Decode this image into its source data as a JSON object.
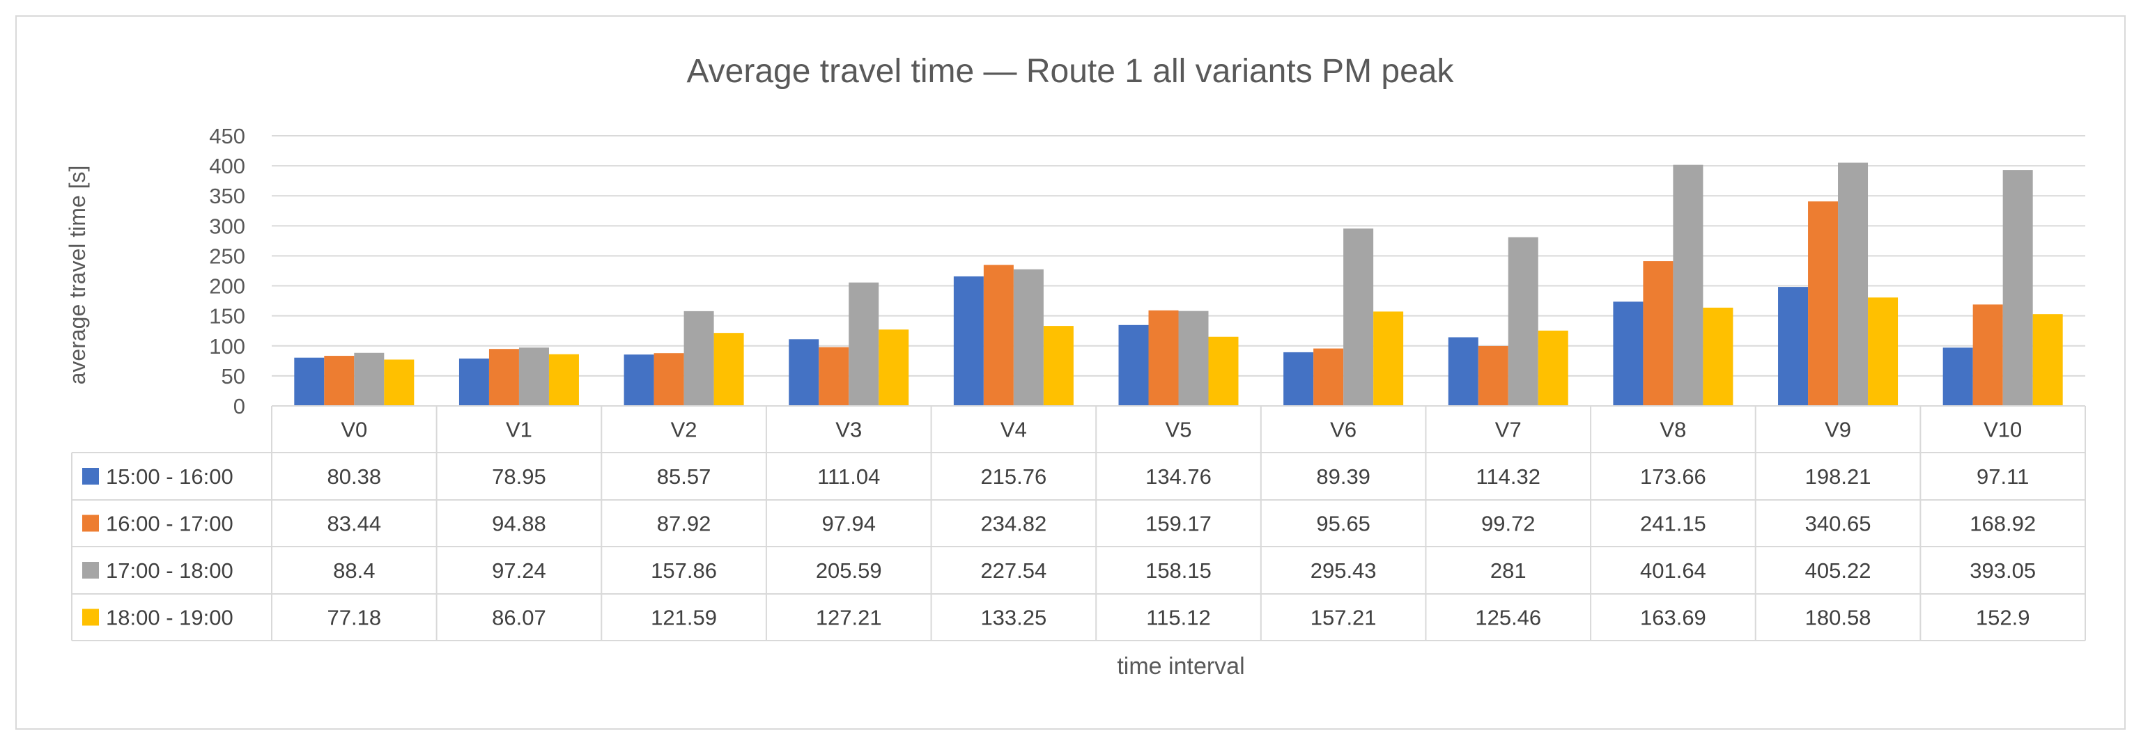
{
  "chart_data": {
    "type": "bar",
    "title": "Average travel time — Route 1 all variants PM peak",
    "xlabel": "time interval",
    "ylabel": "average travel time [s]",
    "ylim": [
      0,
      450
    ],
    "yticks": [
      0,
      50,
      100,
      150,
      200,
      250,
      300,
      350,
      400,
      450
    ],
    "grid": true,
    "legend": "data-table-left",
    "categories": [
      "V0",
      "V1",
      "V2",
      "V3",
      "V4",
      "V5",
      "V6",
      "V7",
      "V8",
      "V9",
      "V10"
    ],
    "series": [
      {
        "name": "15:00 - 16:00",
        "color": "#4472C4",
        "values": [
          80.38,
          78.95,
          85.57,
          111.04,
          215.76,
          134.76,
          89.39,
          114.32,
          173.66,
          198.21,
          97.11
        ]
      },
      {
        "name": "16:00 - 17:00",
        "color": "#ED7D31",
        "values": [
          83.44,
          94.88,
          87.92,
          97.94,
          234.82,
          159.17,
          95.65,
          99.72,
          241.15,
          340.65,
          168.92
        ]
      },
      {
        "name": "17:00 - 18:00",
        "color": "#A5A5A5",
        "values": [
          88.4,
          97.24,
          157.86,
          205.59,
          227.54,
          158.15,
          295.43,
          281,
          401.64,
          405.22,
          393.05
        ]
      },
      {
        "name": "18:00 - 19:00",
        "color": "#FFC000",
        "values": [
          77.18,
          86.07,
          121.59,
          127.21,
          133.25,
          115.12,
          157.21,
          125.46,
          163.69,
          180.58,
          152.9
        ]
      }
    ]
  }
}
